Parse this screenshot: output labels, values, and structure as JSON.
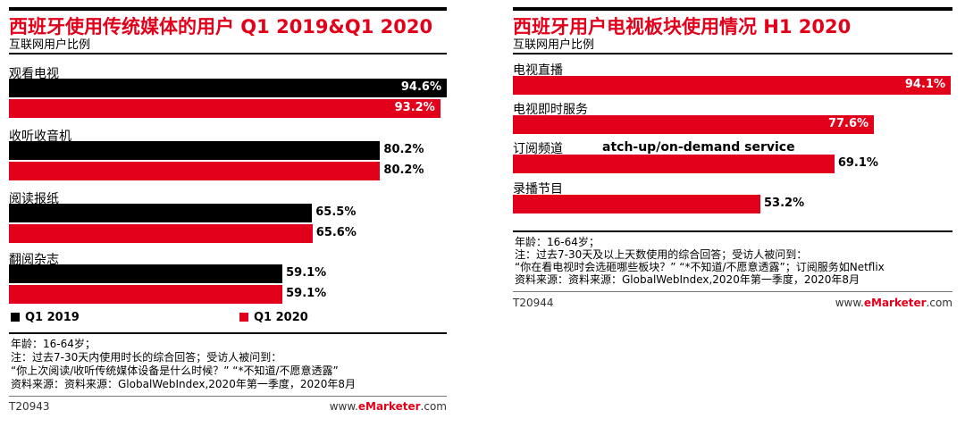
{
  "colors": {
    "q2019": "#000000",
    "q2020": "#e3001b",
    "accent": "#e3001b"
  },
  "chart_data": [
    {
      "type": "bar",
      "orientation": "horizontal",
      "title": "西班牙使用传统媒体的用户  Q1 2019&Q1 2020",
      "subtitle": "互联网用户比例",
      "categories": [
        "观看电视",
        "收听收音机",
        "阅读报纸",
        "翻阅杂志"
      ],
      "series": [
        {
          "name": "Q1 2019",
          "values": [
            94.6,
            80.2,
            65.5,
            59.1
          ],
          "labels": [
            "94.6%",
            "80.2%",
            "65.5%",
            "59.1%"
          ]
        },
        {
          "name": "Q1 2020",
          "values": [
            93.2,
            80.2,
            65.6,
            59.1
          ],
          "labels": [
            "93.2%",
            "80.2%",
            "65.6%",
            "59.1%"
          ]
        }
      ],
      "xlim": [
        0,
        100
      ],
      "legend": "bottom-left",
      "notes": [
        "年龄：16-64岁；",
        "注：过去7-30天内使用时长的综合回答；受访人被问到：",
        "“你上次阅读/收听传统媒体设备是什么时候？” “*不知道/不愿意透露”",
        "资料来源：资料来源：GlobalWebIndex,2020年第一季度，2020年8月"
      ],
      "code": "T20943",
      "site_prefix": "www.",
      "site_brand": "eMarketer",
      "site_suffix": ".com"
    },
    {
      "type": "bar",
      "orientation": "horizontal",
      "title": "西班牙用户电视板块使用情况 H1 2020",
      "subtitle": "互联网用户比例",
      "categories": [
        "电视直播",
        "电视即时服务",
        "订阅频道",
        "录播节目"
      ],
      "series": [
        {
          "name": "H1 2020",
          "values": [
            94.1,
            77.6,
            69.1,
            53.2
          ],
          "labels": [
            "94.1%",
            "77.6%",
            "69.1%",
            "53.2%"
          ]
        }
      ],
      "overlay_text": "atch-up/on-demand service",
      "xlim": [
        0,
        100
      ],
      "notes": [
        "年龄：16-64岁；",
        "注：过去7-30天及以上天数使用的综合回答；受访人被问到：",
        "“你在看电视时会选砸哪些板块？” “*不知道/不愿意透露”；订阅服务如Netflix",
        "资料来源：资料来源：GlobalWebIndex,2020年第一季度，2020年8月"
      ],
      "code": "T20944",
      "site_prefix": "www.",
      "site_brand": "eMarketer",
      "site_suffix": ".com"
    }
  ]
}
